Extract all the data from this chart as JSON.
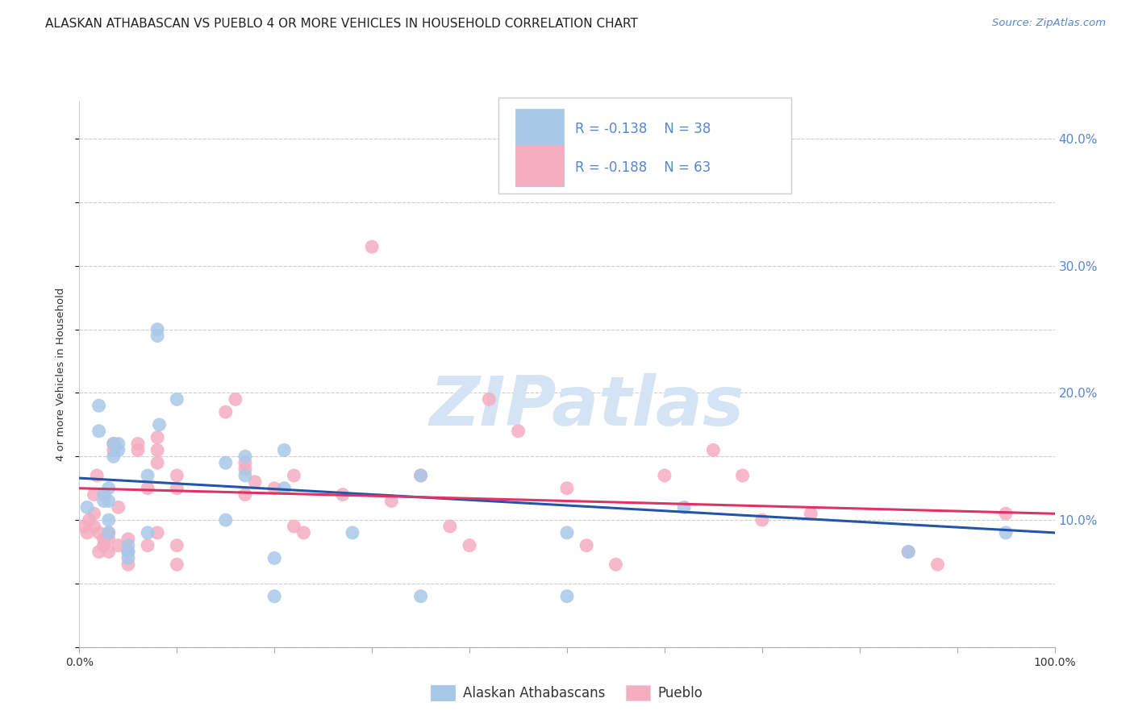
{
  "title": "ALASKAN ATHABASCAN VS PUEBLO 4 OR MORE VEHICLES IN HOUSEHOLD CORRELATION CHART",
  "source": "Source: ZipAtlas.com",
  "ylabel": "4 or more Vehicles in Household",
  "xlim": [
    0,
    1.0
  ],
  "ylim": [
    0.0,
    0.43
  ],
  "legend_label1": "Alaskan Athabascans",
  "legend_label2": "Pueblo",
  "R1": -0.138,
  "N1": 38,
  "R2": -0.188,
  "N2": 63,
  "color1": "#a8c8e8",
  "color2": "#f5adc0",
  "line_color1": "#2255aa",
  "line_color2": "#dd3366",
  "background_color": "#ffffff",
  "grid_color": "#cccccc",
  "watermark": "ZIPatlas",
  "title_color": "#222222",
  "source_color": "#5588cc",
  "right_tick_color": "#5588cc",
  "legend_text_color": "#5588cc",
  "scatter_x1": [
    0.008,
    0.02,
    0.02,
    0.025,
    0.025,
    0.03,
    0.03,
    0.03,
    0.03,
    0.035,
    0.035,
    0.04,
    0.04,
    0.05,
    0.05,
    0.05,
    0.07,
    0.07,
    0.08,
    0.08,
    0.082,
    0.1,
    0.15,
    0.15,
    0.17,
    0.17,
    0.2,
    0.2,
    0.21,
    0.21,
    0.28,
    0.35,
    0.35,
    0.5,
    0.5,
    0.62,
    0.85,
    0.95
  ],
  "scatter_y1": [
    0.11,
    0.19,
    0.17,
    0.12,
    0.115,
    0.1,
    0.115,
    0.125,
    0.09,
    0.15,
    0.16,
    0.155,
    0.16,
    0.08,
    0.07,
    0.075,
    0.135,
    0.09,
    0.245,
    0.25,
    0.175,
    0.195,
    0.145,
    0.1,
    0.15,
    0.135,
    0.07,
    0.04,
    0.155,
    0.125,
    0.09,
    0.135,
    0.04,
    0.09,
    0.04,
    0.11,
    0.075,
    0.09
  ],
  "scatter_x2": [
    0.005,
    0.008,
    0.01,
    0.015,
    0.015,
    0.015,
    0.018,
    0.02,
    0.02,
    0.025,
    0.025,
    0.025,
    0.03,
    0.03,
    0.03,
    0.035,
    0.035,
    0.04,
    0.04,
    0.05,
    0.05,
    0.05,
    0.06,
    0.06,
    0.07,
    0.07,
    0.08,
    0.08,
    0.08,
    0.08,
    0.1,
    0.1,
    0.1,
    0.1,
    0.15,
    0.16,
    0.17,
    0.17,
    0.17,
    0.18,
    0.2,
    0.22,
    0.22,
    0.23,
    0.27,
    0.3,
    0.32,
    0.35,
    0.38,
    0.4,
    0.42,
    0.45,
    0.5,
    0.52,
    0.55,
    0.6,
    0.65,
    0.68,
    0.7,
    0.75,
    0.85,
    0.88,
    0.95
  ],
  "scatter_y2": [
    0.095,
    0.09,
    0.1,
    0.095,
    0.105,
    0.12,
    0.135,
    0.09,
    0.075,
    0.08,
    0.085,
    0.12,
    0.075,
    0.085,
    0.09,
    0.16,
    0.155,
    0.08,
    0.11,
    0.085,
    0.075,
    0.065,
    0.16,
    0.155,
    0.08,
    0.125,
    0.145,
    0.155,
    0.165,
    0.09,
    0.125,
    0.135,
    0.08,
    0.065,
    0.185,
    0.195,
    0.14,
    0.145,
    0.12,
    0.13,
    0.125,
    0.135,
    0.095,
    0.09,
    0.12,
    0.315,
    0.115,
    0.135,
    0.095,
    0.08,
    0.195,
    0.17,
    0.125,
    0.08,
    0.065,
    0.135,
    0.155,
    0.135,
    0.1,
    0.105,
    0.075,
    0.065,
    0.105
  ],
  "line1_x": [
    0.0,
    1.0
  ],
  "line1_y": [
    0.133,
    0.09
  ],
  "line2_x": [
    0.0,
    1.0
  ],
  "line2_y": [
    0.125,
    0.105
  ]
}
